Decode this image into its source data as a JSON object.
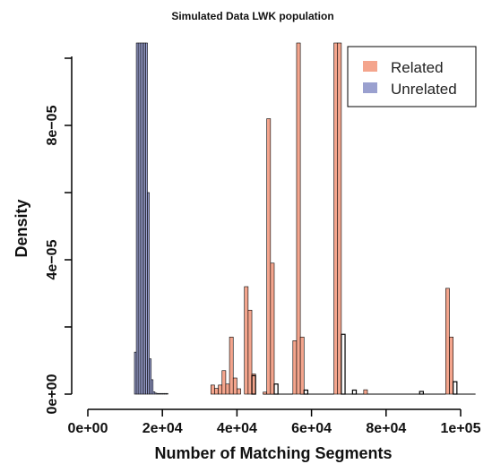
{
  "chart_data": {
    "type": "bar",
    "title": "Simulated Data LWK population",
    "xlabel": "Number of Matching Segments",
    "ylabel": "Density",
    "xlim": [
      0,
      105000
    ],
    "ylim": [
      0,
      0.0001
    ],
    "x_ticks": [
      0,
      20000,
      40000,
      60000,
      80000,
      100000
    ],
    "x_tick_labels": [
      "0e+00",
      "2e+04",
      "4e+04",
      "6e+04",
      "8e+04",
      "1e+05"
    ],
    "y_ticks": [
      0,
      4e-05,
      8e-05
    ],
    "y_tick_labels": [
      "0e+00",
      "4e−05",
      "8e−05"
    ],
    "legend": {
      "position": "top-right"
    },
    "series": [
      {
        "name": "Related",
        "color": "#f4a58d",
        "bin_width": 1000,
        "bins": [
          {
            "x": 33000,
            "y": 2.7e-06
          },
          {
            "x": 34000,
            "y": 1.7e-06
          },
          {
            "x": 35000,
            "y": 2.7e-06
          },
          {
            "x": 36000,
            "y": 7e-06
          },
          {
            "x": 37000,
            "y": 3e-06
          },
          {
            "x": 38000,
            "y": 1.7e-05
          },
          {
            "x": 39000,
            "y": 4.8e-06
          },
          {
            "x": 40000,
            "y": 1.6e-06
          },
          {
            "x": 42000,
            "y": 3.2e-05
          },
          {
            "x": 43000,
            "y": 2.5e-05
          },
          {
            "x": 44000,
            "y": 6e-06
          },
          {
            "x": 47000,
            "y": 6e-07
          },
          {
            "x": 48000,
            "y": 8.2e-05
          },
          {
            "x": 49000,
            "y": 3.9e-05
          },
          {
            "x": 55000,
            "y": 1.59e-05
          },
          {
            "x": 56000,
            "y": 0.000105
          },
          {
            "x": 57000,
            "y": 1.7e-05
          },
          {
            "x": 66000,
            "y": 0.000105
          },
          {
            "x": 67000,
            "y": 0.000105
          },
          {
            "x": 74000,
            "y": 1.3e-06
          },
          {
            "x": 96000,
            "y": 3.15e-05
          },
          {
            "x": 97000,
            "y": 1.7e-05
          }
        ]
      },
      {
        "name": "Unrelated",
        "color": "#9aa0cf",
        "bin_width": 500,
        "bins": [
          {
            "x": 12500,
            "y": 1.25e-05
          },
          {
            "x": 13000,
            "y": 0.000105
          },
          {
            "x": 13500,
            "y": 0.000105
          },
          {
            "x": 14000,
            "y": 0.000105
          },
          {
            "x": 14500,
            "y": 0.000105
          },
          {
            "x": 15000,
            "y": 0.000105
          },
          {
            "x": 15500,
            "y": 0.000105
          },
          {
            "x": 16000,
            "y": 6e-05
          },
          {
            "x": 16500,
            "y": 1.05e-05
          },
          {
            "x": 17000,
            "y": 4.3e-06
          },
          {
            "x": 17500,
            "y": 7e-07
          },
          {
            "x": 18000,
            "y": 3e-07
          },
          {
            "x": 18500,
            "y": 2e-07
          },
          {
            "x": 19000,
            "y": 2e-07
          },
          {
            "x": 19500,
            "y": 2e-07
          },
          {
            "x": 20000,
            "y": 2e-07
          },
          {
            "x": 20500,
            "y": 2e-07
          },
          {
            "x": 21000,
            "y": 2e-07
          }
        ]
      },
      {
        "name": "",
        "color": "#ffffff",
        "bin_width": 1000,
        "bins": [
          {
            "x": 44000,
            "y": 5.5e-06
          },
          {
            "x": 50000,
            "y": 3e-06
          },
          {
            "x": 58000,
            "y": 1.2e-06
          },
          {
            "x": 68000,
            "y": 1.78e-05
          },
          {
            "x": 71000,
            "y": 1.2e-06
          },
          {
            "x": 89000,
            "y": 8e-07
          },
          {
            "x": 98000,
            "y": 3.7e-06
          }
        ]
      }
    ],
    "baseline_segments": [
      [
        47000,
        55000
      ],
      [
        57000,
        66000
      ],
      [
        68000,
        96000
      ],
      [
        98000,
        104000
      ]
    ]
  }
}
